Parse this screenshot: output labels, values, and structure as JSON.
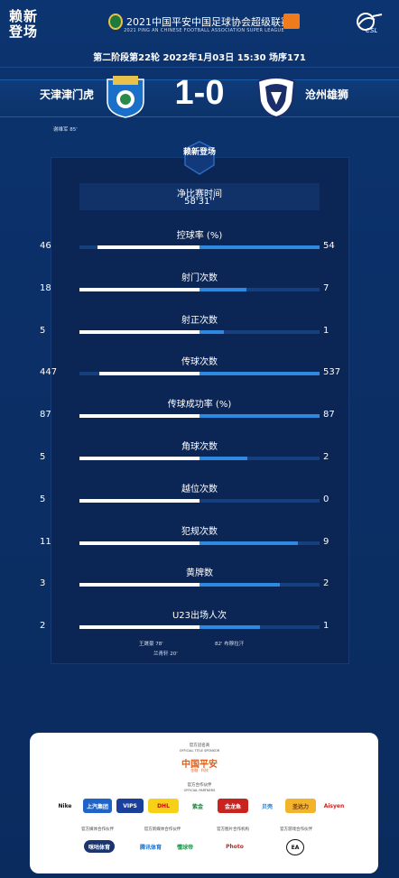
{
  "header": {
    "app_logo_text": "赖新登场",
    "league_title": "2021中国平安中国足球协会超级联赛",
    "league_subtitle": "2021 PING AN CHINESE FOOTBALL ASSOCIATION SUPER LEAGUE",
    "csl_text": "CSL",
    "match_info": "第二阶段第22轮  2022年1月03日 15:30 场序171"
  },
  "match": {
    "home_team": "天津津门虎",
    "away_team": "沧州雄狮",
    "score": "1-0",
    "scorer": "谢维军  85'"
  },
  "panel": {
    "badge_text": "赖新登场",
    "time_label": "净比赛时间",
    "time_value": "58'31''"
  },
  "stats": [
    {
      "label": "控球率 (%)",
      "home": "46",
      "away": "54",
      "home_val": 46,
      "away_val": 54
    },
    {
      "label": "射门次数",
      "home": "18",
      "away": "7",
      "home_val": 18,
      "away_val": 7
    },
    {
      "label": "射正次数",
      "home": "5",
      "away": "1",
      "home_val": 5,
      "away_val": 1
    },
    {
      "label": "传球次数",
      "home": "447",
      "away": "537",
      "home_val": 447,
      "away_val": 537
    },
    {
      "label": "传球成功率 (%)",
      "home": "87",
      "away": "87",
      "home_val": 87,
      "away_val": 87
    },
    {
      "label": "角球次数",
      "home": "5",
      "away": "2",
      "home_val": 5,
      "away_val": 2
    },
    {
      "label": "越位次数",
      "home": "5",
      "away": "0",
      "home_val": 5,
      "away_val": 0
    },
    {
      "label": "犯规次数",
      "home": "11",
      "away": "9",
      "home_val": 11,
      "away_val": 9
    },
    {
      "label": "黄牌数",
      "home": "3",
      "away": "2",
      "home_val": 3,
      "away_val": 2
    },
    {
      "label": "U23出场人次",
      "home": "2",
      "away": "1",
      "home_val": 2,
      "away_val": 1
    }
  ],
  "u23_notes": {
    "home_1": "王晟豪   78'",
    "home_2": "兰青轩   20'",
    "away_1": "82'   布穆拉汗"
  },
  "sponsors": {
    "title_partner_heading": "官方冠名商",
    "title_partner_heading_en": "OFFICIAL TITLE SPONSOR",
    "title_partner": "中国平安",
    "title_partner_sub": "金融 · 科技",
    "partners_heading": "官方合作伙伴",
    "partners_heading_en": "OFFICIAL PARTNERS",
    "partners": [
      "Nike",
      "上汽集团",
      "VIPS",
      "DHL",
      "紫金",
      "金龙鱼",
      "贝壳",
      "圣达力",
      "Aisyen"
    ],
    "media_heading": "官方媒体合作伙伴",
    "broadcast_heading": "官方新媒体合作伙伴",
    "photo_heading": "官方图片合作机构",
    "game_heading": "官方游戏合作伙伴",
    "media": [
      "咪咕体育",
      "腾讯体育",
      "懂球帝",
      "Photo",
      "EA"
    ]
  },
  "colors": {
    "background": "#0b2f66",
    "panel": "#0b2555",
    "home_bar": "#ffffff",
    "away_bar": "#2d8ae0",
    "track": "#163f7d"
  }
}
